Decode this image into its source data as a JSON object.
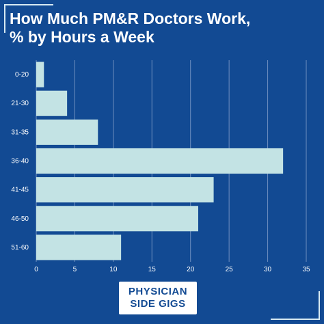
{
  "header": {
    "title_line1": "How Much PM&R Doctors Work,",
    "title_line2": "% by Hours a Week"
  },
  "logo": {
    "line1": "PHYSICIAN",
    "line2": "SIDE GIGS"
  },
  "colors": {
    "background": "#124a93",
    "bar": "#c3e3e4",
    "grid": "#6f8fbf",
    "text": "#ffffff"
  },
  "chart_data": {
    "type": "bar",
    "orientation": "horizontal",
    "title": "How Much PM&R Doctors Work, % by Hours a Week",
    "categories": [
      "0-20",
      "21-30",
      "31-35",
      "36-40",
      "41-45",
      "46-50",
      "51-60"
    ],
    "values": [
      1,
      4,
      8,
      32,
      23,
      21,
      11
    ],
    "xlim": [
      0,
      35
    ],
    "xticks": [
      0,
      5,
      10,
      15,
      20,
      25,
      30,
      35
    ],
    "grid": true,
    "legend": "none"
  }
}
